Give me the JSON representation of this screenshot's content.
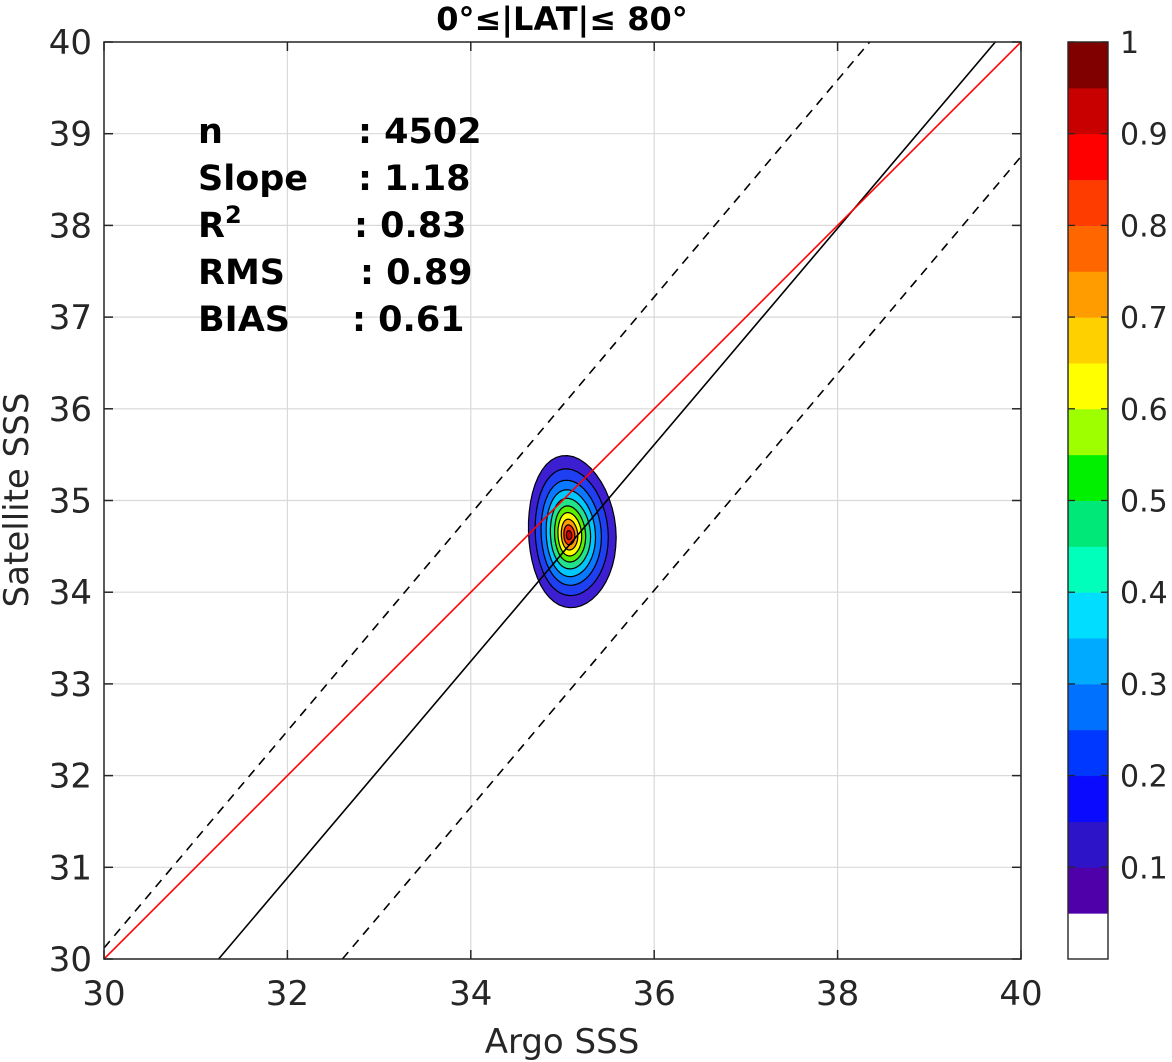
{
  "chart_data": {
    "type": "contour",
    "title": "0°≤|LAT|≤ 80°",
    "xlabel": "Argo SSS",
    "ylabel": "Satellite SSS",
    "xlim": [
      30,
      40
    ],
    "ylim": [
      30,
      40
    ],
    "xticks": [
      "30",
      "32",
      "34",
      "36",
      "38",
      "40"
    ],
    "yticks": [
      "30",
      "31",
      "32",
      "33",
      "34",
      "35",
      "36",
      "37",
      "38",
      "39",
      "40"
    ],
    "grid": true,
    "stats": [
      {
        "label": "n",
        "value": ": 4502"
      },
      {
        "label": "Slope",
        "value": ": 1.18"
      },
      {
        "label": "R",
        "sup": "2",
        "value": ": 0.83"
      },
      {
        "label": "RMS",
        "value": ": 0.89"
      },
      {
        "label": "BIAS",
        "value": ": 0.61"
      }
    ],
    "lines": {
      "identity": {
        "color": "#ff0000",
        "points": [
          [
            30,
            30
          ],
          [
            40,
            40
          ]
        ]
      },
      "regression": {
        "color": "#000000",
        "slope": 1.18,
        "points": [
          [
            31.25,
            30
          ],
          [
            39.72,
            40
          ]
        ]
      },
      "offset_upper": {
        "color": "#000000",
        "style": "dashed",
        "points": [
          [
            30,
            30.12
          ],
          [
            38.35,
            40
          ]
        ]
      },
      "offset_lower": {
        "color": "#000000",
        "style": "dashed",
        "points": [
          [
            32.6,
            30
          ],
          [
            40,
            38.75
          ]
        ]
      }
    },
    "density_peak": {
      "x": 35.07,
      "y": 34.62
    },
    "contour_levels": [
      {
        "level": 0.05,
        "color": "#3c1fd0",
        "rx": 0.48,
        "ry": 0.84,
        "dx": 0.0,
        "dy": 0.0
      },
      {
        "level": 0.15,
        "color": "#1f3ff2",
        "rx": 0.4,
        "ry": 0.7,
        "dx": 0.0,
        "dy": 0.0
      },
      {
        "level": 0.25,
        "color": "#0a78ff",
        "rx": 0.33,
        "ry": 0.58,
        "dx": 0.0,
        "dy": 0.0
      },
      {
        "level": 0.35,
        "color": "#00c8ff",
        "rx": 0.27,
        "ry": 0.48,
        "dx": 0.0,
        "dy": 0.0
      },
      {
        "level": 0.45,
        "color": "#22e28c",
        "rx": 0.22,
        "ry": 0.39,
        "dx": 0.0,
        "dy": 0.0
      },
      {
        "level": 0.55,
        "color": "#58f000",
        "rx": 0.17,
        "ry": 0.31,
        "dx": 0.0,
        "dy": 0.0
      },
      {
        "level": 0.65,
        "color": "#ffff00",
        "rx": 0.13,
        "ry": 0.24,
        "dx": 0.0,
        "dy": 0.0
      },
      {
        "level": 0.75,
        "color": "#ff9f00",
        "rx": 0.09,
        "ry": 0.17,
        "dx": 0.0,
        "dy": 0.0
      },
      {
        "level": 0.85,
        "color": "#ff3000",
        "rx": 0.06,
        "ry": 0.11,
        "dx": 0.0,
        "dy": 0.0
      },
      {
        "level": 0.95,
        "color": "#c40000",
        "rx": 0.03,
        "ry": 0.05,
        "dx": 0.0,
        "dy": 0.0
      }
    ],
    "colorbar": {
      "colors": [
        "#ffffff",
        "#5000a8",
        "#2e14c8",
        "#0a0aff",
        "#0038ff",
        "#0070ff",
        "#00aaff",
        "#00ddff",
        "#00ffbb",
        "#00e878",
        "#00f000",
        "#9dff00",
        "#ffff00",
        "#ffd000",
        "#ff9c00",
        "#ff6600",
        "#ff3c00",
        "#ff0000",
        "#c80000",
        "#800000"
      ],
      "ticks": [
        "0.1",
        "0.2",
        "0.3",
        "0.4",
        "0.5",
        "0.6",
        "0.7",
        "0.8",
        "0.9",
        "1"
      ],
      "tick_values": [
        0.1,
        0.2,
        0.3,
        0.4,
        0.5,
        0.6,
        0.7,
        0.8,
        0.9,
        1.0
      ],
      "range": [
        0,
        1
      ]
    }
  }
}
